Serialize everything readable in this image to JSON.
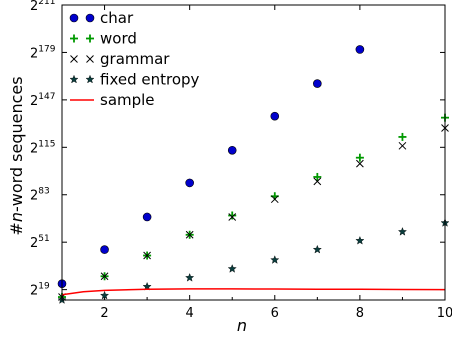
{
  "chart_data": {
    "type": "scatter",
    "x_label_var": "n",
    "y_label_prefix": "#",
    "y_label_var": "n",
    "y_label_suffix": "-word sequences",
    "y_scale": "log2",
    "x_range": [
      1,
      10
    ],
    "y_range_exponent": [
      12,
      211
    ],
    "x_ticks": [
      "2",
      "4",
      "6",
      "8",
      "10"
    ],
    "y_tick_base": "2",
    "y_ticks": [
      "19",
      "51",
      "83",
      "115",
      "147",
      "179",
      "211"
    ],
    "legend_position": "top-left",
    "series": [
      {
        "name": "char",
        "marker": "circle",
        "color": "#0000cc",
        "x": [
          1,
          2,
          3,
          4,
          5,
          6,
          7,
          8
        ],
        "y_exponent": [
          23,
          46,
          68,
          91,
          113,
          136,
          158,
          181
        ]
      },
      {
        "name": "word",
        "marker": "plus",
        "color": "#009900",
        "x": [
          1,
          2,
          3,
          4,
          5,
          6,
          7,
          8,
          9,
          10
        ],
        "y_exponent": [
          14,
          28,
          42,
          56,
          69,
          82,
          95,
          108,
          122,
          135
        ]
      },
      {
        "name": "grammar",
        "marker": "x",
        "color": "#000000",
        "x": [
          1,
          2,
          3,
          4,
          5,
          6,
          7,
          8,
          9,
          10
        ],
        "y_exponent": [
          14,
          28,
          42,
          56,
          68,
          80,
          92,
          104,
          116,
          128
        ]
      },
      {
        "name": "fixed entropy",
        "marker": "star",
        "color": "#0a3d3d",
        "x": [
          1,
          2,
          3,
          4,
          5,
          6,
          7,
          8,
          9,
          10
        ],
        "y_exponent": [
          12,
          15,
          21,
          27,
          33,
          39,
          46,
          52,
          58,
          64
        ]
      },
      {
        "name": "sample",
        "marker": "line",
        "color": "#ff0000",
        "x": [
          1,
          1.5,
          2,
          3,
          4,
          5,
          6,
          7,
          8,
          9,
          10
        ],
        "y_exponent": [
          15.5,
          17.5,
          18.5,
          19.3,
          19.5,
          19.5,
          19.4,
          19.3,
          19.2,
          19.1,
          19
        ]
      }
    ]
  }
}
